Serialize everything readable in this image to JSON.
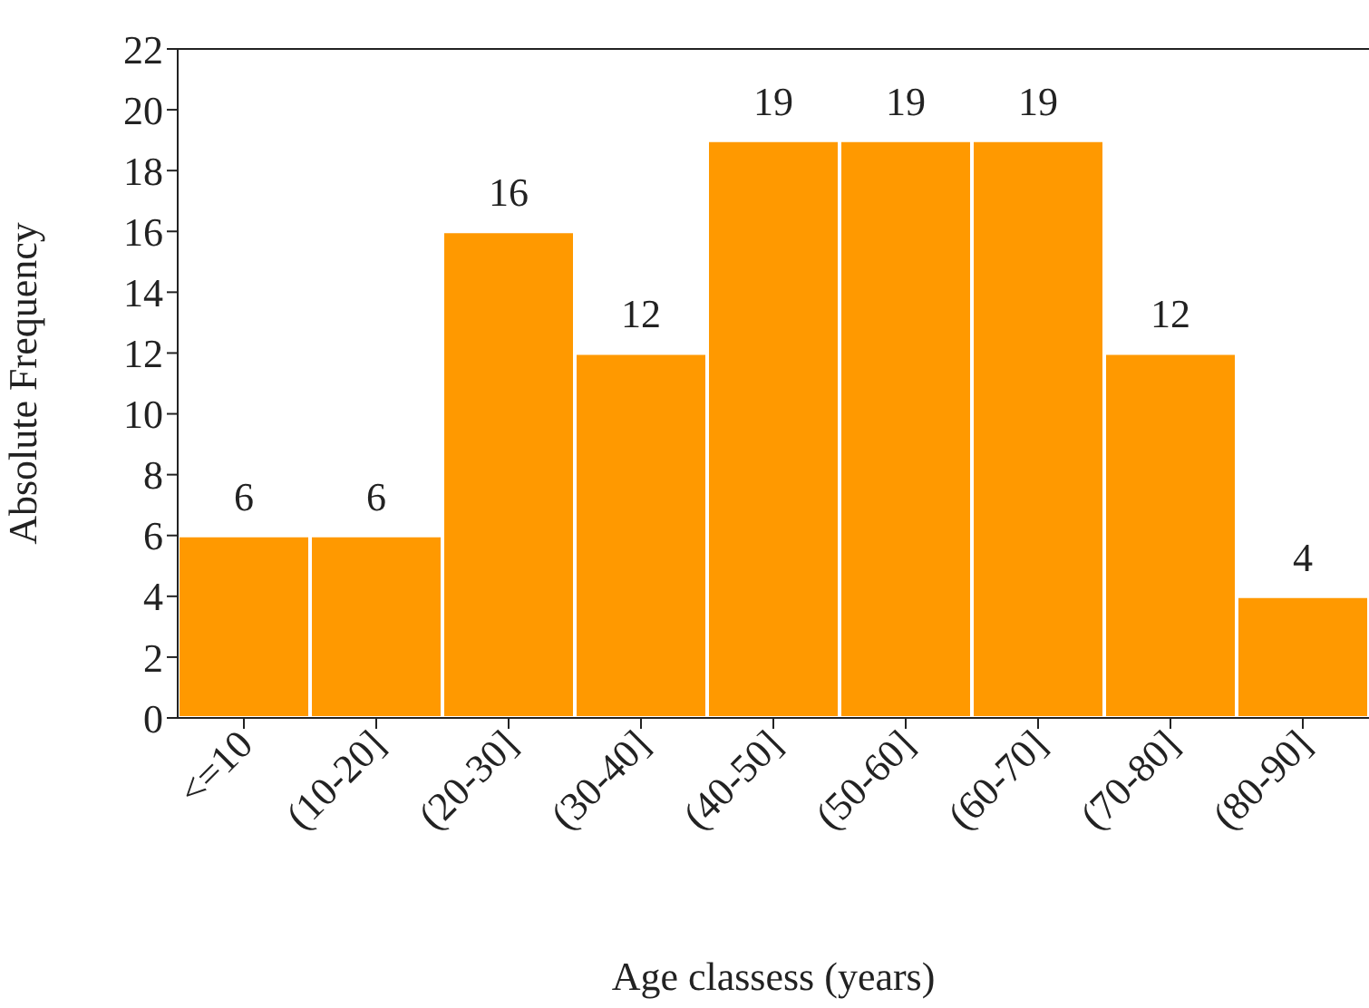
{
  "chart_data": {
    "type": "bar",
    "xlabel": "Age classess (years)",
    "ylabel": "Absolute Frequency",
    "categories": [
      "<=10",
      "(10-20]",
      "(20-30]",
      "(30-40]",
      "(40-50]",
      "(50-60]",
      "(60-70]",
      "(70-80]",
      "(80-90]"
    ],
    "values": [
      6,
      6,
      16,
      12,
      19,
      19,
      19,
      12,
      4
    ],
    "color": "#ff9900",
    "ylim": [
      0,
      22
    ],
    "yticks": [
      0,
      2,
      4,
      6,
      8,
      10,
      12,
      14,
      16,
      18,
      20,
      22
    ],
    "data_labels": true
  }
}
